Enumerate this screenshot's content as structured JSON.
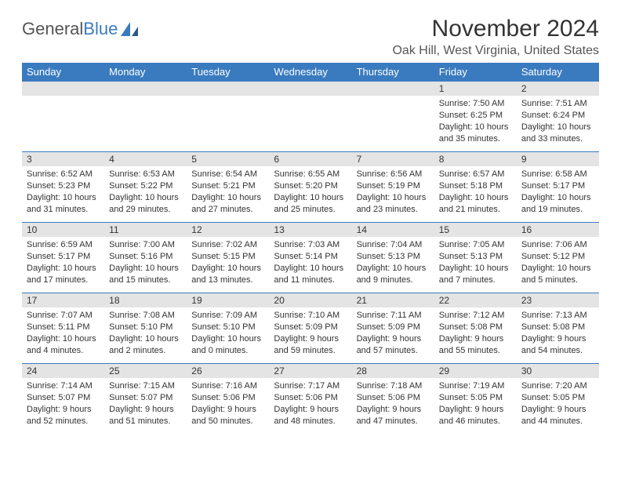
{
  "logo": {
    "text_gray": "General",
    "text_blue": "Blue"
  },
  "title": "November 2024",
  "location": "Oak Hill, West Virginia, United States",
  "colors": {
    "header_bg": "#3a7bbf",
    "header_text": "#ffffff",
    "daynum_bg": "#e4e4e4",
    "cell_border": "#3a7bbf",
    "body_text": "#333333",
    "page_bg": "#ffffff"
  },
  "typography": {
    "title_fontsize": 30,
    "location_fontsize": 16,
    "dayheader_fontsize": 13,
    "daynum_fontsize": 12,
    "body_fontsize": 11
  },
  "day_headers": [
    "Sunday",
    "Monday",
    "Tuesday",
    "Wednesday",
    "Thursday",
    "Friday",
    "Saturday"
  ],
  "weeks": [
    [
      {
        "empty": true
      },
      {
        "empty": true
      },
      {
        "empty": true
      },
      {
        "empty": true
      },
      {
        "empty": true
      },
      {
        "n": "1",
        "sr": "Sunrise: 7:50 AM",
        "ss": "Sunset: 6:25 PM",
        "d1": "Daylight: 10 hours",
        "d2": "and 35 minutes."
      },
      {
        "n": "2",
        "sr": "Sunrise: 7:51 AM",
        "ss": "Sunset: 6:24 PM",
        "d1": "Daylight: 10 hours",
        "d2": "and 33 minutes."
      }
    ],
    [
      {
        "n": "3",
        "sr": "Sunrise: 6:52 AM",
        "ss": "Sunset: 5:23 PM",
        "d1": "Daylight: 10 hours",
        "d2": "and 31 minutes."
      },
      {
        "n": "4",
        "sr": "Sunrise: 6:53 AM",
        "ss": "Sunset: 5:22 PM",
        "d1": "Daylight: 10 hours",
        "d2": "and 29 minutes."
      },
      {
        "n": "5",
        "sr": "Sunrise: 6:54 AM",
        "ss": "Sunset: 5:21 PM",
        "d1": "Daylight: 10 hours",
        "d2": "and 27 minutes."
      },
      {
        "n": "6",
        "sr": "Sunrise: 6:55 AM",
        "ss": "Sunset: 5:20 PM",
        "d1": "Daylight: 10 hours",
        "d2": "and 25 minutes."
      },
      {
        "n": "7",
        "sr": "Sunrise: 6:56 AM",
        "ss": "Sunset: 5:19 PM",
        "d1": "Daylight: 10 hours",
        "d2": "and 23 minutes."
      },
      {
        "n": "8",
        "sr": "Sunrise: 6:57 AM",
        "ss": "Sunset: 5:18 PM",
        "d1": "Daylight: 10 hours",
        "d2": "and 21 minutes."
      },
      {
        "n": "9",
        "sr": "Sunrise: 6:58 AM",
        "ss": "Sunset: 5:17 PM",
        "d1": "Daylight: 10 hours",
        "d2": "and 19 minutes."
      }
    ],
    [
      {
        "n": "10",
        "sr": "Sunrise: 6:59 AM",
        "ss": "Sunset: 5:17 PM",
        "d1": "Daylight: 10 hours",
        "d2": "and 17 minutes."
      },
      {
        "n": "11",
        "sr": "Sunrise: 7:00 AM",
        "ss": "Sunset: 5:16 PM",
        "d1": "Daylight: 10 hours",
        "d2": "and 15 minutes."
      },
      {
        "n": "12",
        "sr": "Sunrise: 7:02 AM",
        "ss": "Sunset: 5:15 PM",
        "d1": "Daylight: 10 hours",
        "d2": "and 13 minutes."
      },
      {
        "n": "13",
        "sr": "Sunrise: 7:03 AM",
        "ss": "Sunset: 5:14 PM",
        "d1": "Daylight: 10 hours",
        "d2": "and 11 minutes."
      },
      {
        "n": "14",
        "sr": "Sunrise: 7:04 AM",
        "ss": "Sunset: 5:13 PM",
        "d1": "Daylight: 10 hours",
        "d2": "and 9 minutes."
      },
      {
        "n": "15",
        "sr": "Sunrise: 7:05 AM",
        "ss": "Sunset: 5:13 PM",
        "d1": "Daylight: 10 hours",
        "d2": "and 7 minutes."
      },
      {
        "n": "16",
        "sr": "Sunrise: 7:06 AM",
        "ss": "Sunset: 5:12 PM",
        "d1": "Daylight: 10 hours",
        "d2": "and 5 minutes."
      }
    ],
    [
      {
        "n": "17",
        "sr": "Sunrise: 7:07 AM",
        "ss": "Sunset: 5:11 PM",
        "d1": "Daylight: 10 hours",
        "d2": "and 4 minutes."
      },
      {
        "n": "18",
        "sr": "Sunrise: 7:08 AM",
        "ss": "Sunset: 5:10 PM",
        "d1": "Daylight: 10 hours",
        "d2": "and 2 minutes."
      },
      {
        "n": "19",
        "sr": "Sunrise: 7:09 AM",
        "ss": "Sunset: 5:10 PM",
        "d1": "Daylight: 10 hours",
        "d2": "and 0 minutes."
      },
      {
        "n": "20",
        "sr": "Sunrise: 7:10 AM",
        "ss": "Sunset: 5:09 PM",
        "d1": "Daylight: 9 hours",
        "d2": "and 59 minutes."
      },
      {
        "n": "21",
        "sr": "Sunrise: 7:11 AM",
        "ss": "Sunset: 5:09 PM",
        "d1": "Daylight: 9 hours",
        "d2": "and 57 minutes."
      },
      {
        "n": "22",
        "sr": "Sunrise: 7:12 AM",
        "ss": "Sunset: 5:08 PM",
        "d1": "Daylight: 9 hours",
        "d2": "and 55 minutes."
      },
      {
        "n": "23",
        "sr": "Sunrise: 7:13 AM",
        "ss": "Sunset: 5:08 PM",
        "d1": "Daylight: 9 hours",
        "d2": "and 54 minutes."
      }
    ],
    [
      {
        "n": "24",
        "sr": "Sunrise: 7:14 AM",
        "ss": "Sunset: 5:07 PM",
        "d1": "Daylight: 9 hours",
        "d2": "and 52 minutes."
      },
      {
        "n": "25",
        "sr": "Sunrise: 7:15 AM",
        "ss": "Sunset: 5:07 PM",
        "d1": "Daylight: 9 hours",
        "d2": "and 51 minutes."
      },
      {
        "n": "26",
        "sr": "Sunrise: 7:16 AM",
        "ss": "Sunset: 5:06 PM",
        "d1": "Daylight: 9 hours",
        "d2": "and 50 minutes."
      },
      {
        "n": "27",
        "sr": "Sunrise: 7:17 AM",
        "ss": "Sunset: 5:06 PM",
        "d1": "Daylight: 9 hours",
        "d2": "and 48 minutes."
      },
      {
        "n": "28",
        "sr": "Sunrise: 7:18 AM",
        "ss": "Sunset: 5:06 PM",
        "d1": "Daylight: 9 hours",
        "d2": "and 47 minutes."
      },
      {
        "n": "29",
        "sr": "Sunrise: 7:19 AM",
        "ss": "Sunset: 5:05 PM",
        "d1": "Daylight: 9 hours",
        "d2": "and 46 minutes."
      },
      {
        "n": "30",
        "sr": "Sunrise: 7:20 AM",
        "ss": "Sunset: 5:05 PM",
        "d1": "Daylight: 9 hours",
        "d2": "and 44 minutes."
      }
    ]
  ]
}
